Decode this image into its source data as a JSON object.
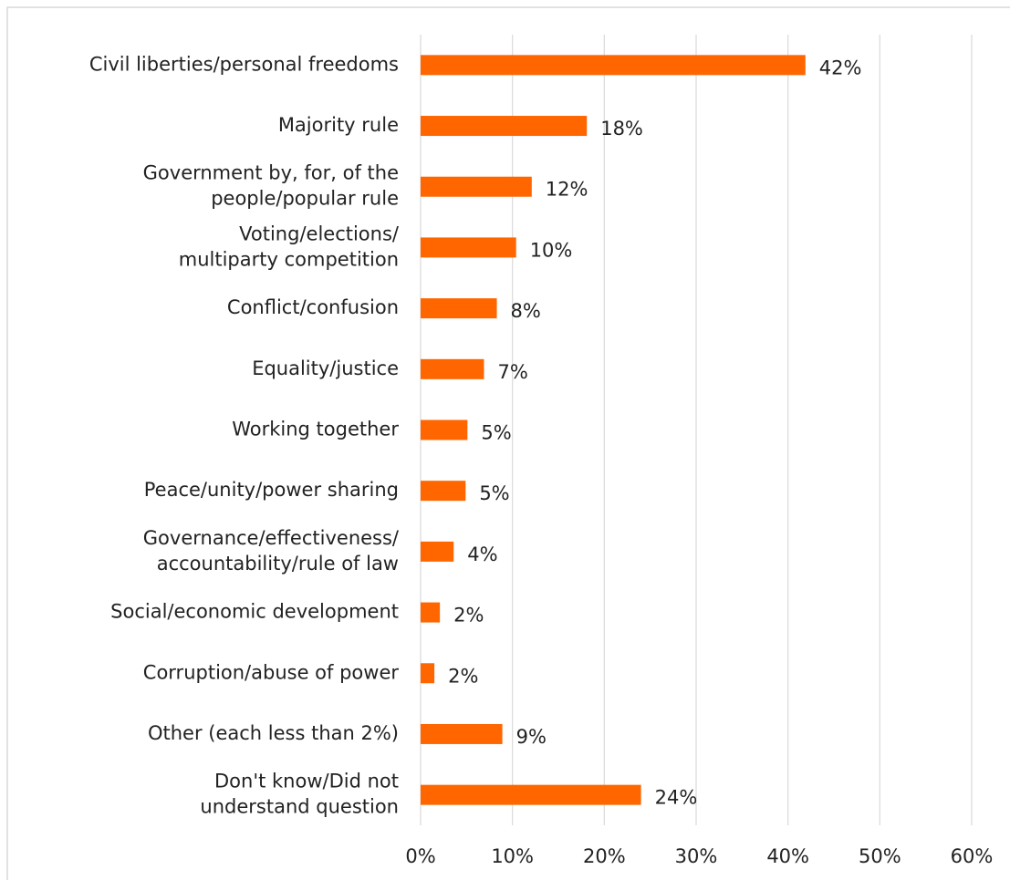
{
  "chart_data": {
    "type": "bar",
    "orientation": "horizontal",
    "categories": [
      "Civil liberties/personal freedoms",
      "Majority rule",
      "Government by, for, of the\npeople/popular rule",
      "Voting/elections/\nmultiparty competition",
      "Conflict/confusion",
      "Equality/justice",
      "Working together",
      "Peace/unity/power sharing",
      "Governance/effectiveness/\naccountability/rule of law",
      "Social/economic development",
      "Corruption/abuse of power",
      "Other (each less than 2%)",
      "Don't know/Did not\nunderstand question"
    ],
    "values": [
      41.9,
      18.1,
      12.1,
      10.4,
      8.3,
      6.9,
      5.1,
      4.9,
      3.6,
      2.1,
      1.5,
      8.9,
      24.0
    ],
    "value_labels": [
      "42%",
      "18%",
      "12%",
      "10%",
      "8%",
      "7%",
      "5%",
      "5%",
      "4%",
      "2%",
      "2%",
      "9%",
      "24%"
    ],
    "color": "#ff6600",
    "xlim": [
      0,
      60
    ],
    "xticks": [
      {
        "value": 0,
        "label": "0%"
      },
      {
        "value": 10,
        "label": "10%"
      },
      {
        "value": 20,
        "label": "20%"
      },
      {
        "value": 30,
        "label": "30%"
      },
      {
        "value": 40,
        "label": "40%"
      },
      {
        "value": 50,
        "label": "50%"
      },
      {
        "value": 60,
        "label": "60%"
      }
    ],
    "grid": true
  }
}
